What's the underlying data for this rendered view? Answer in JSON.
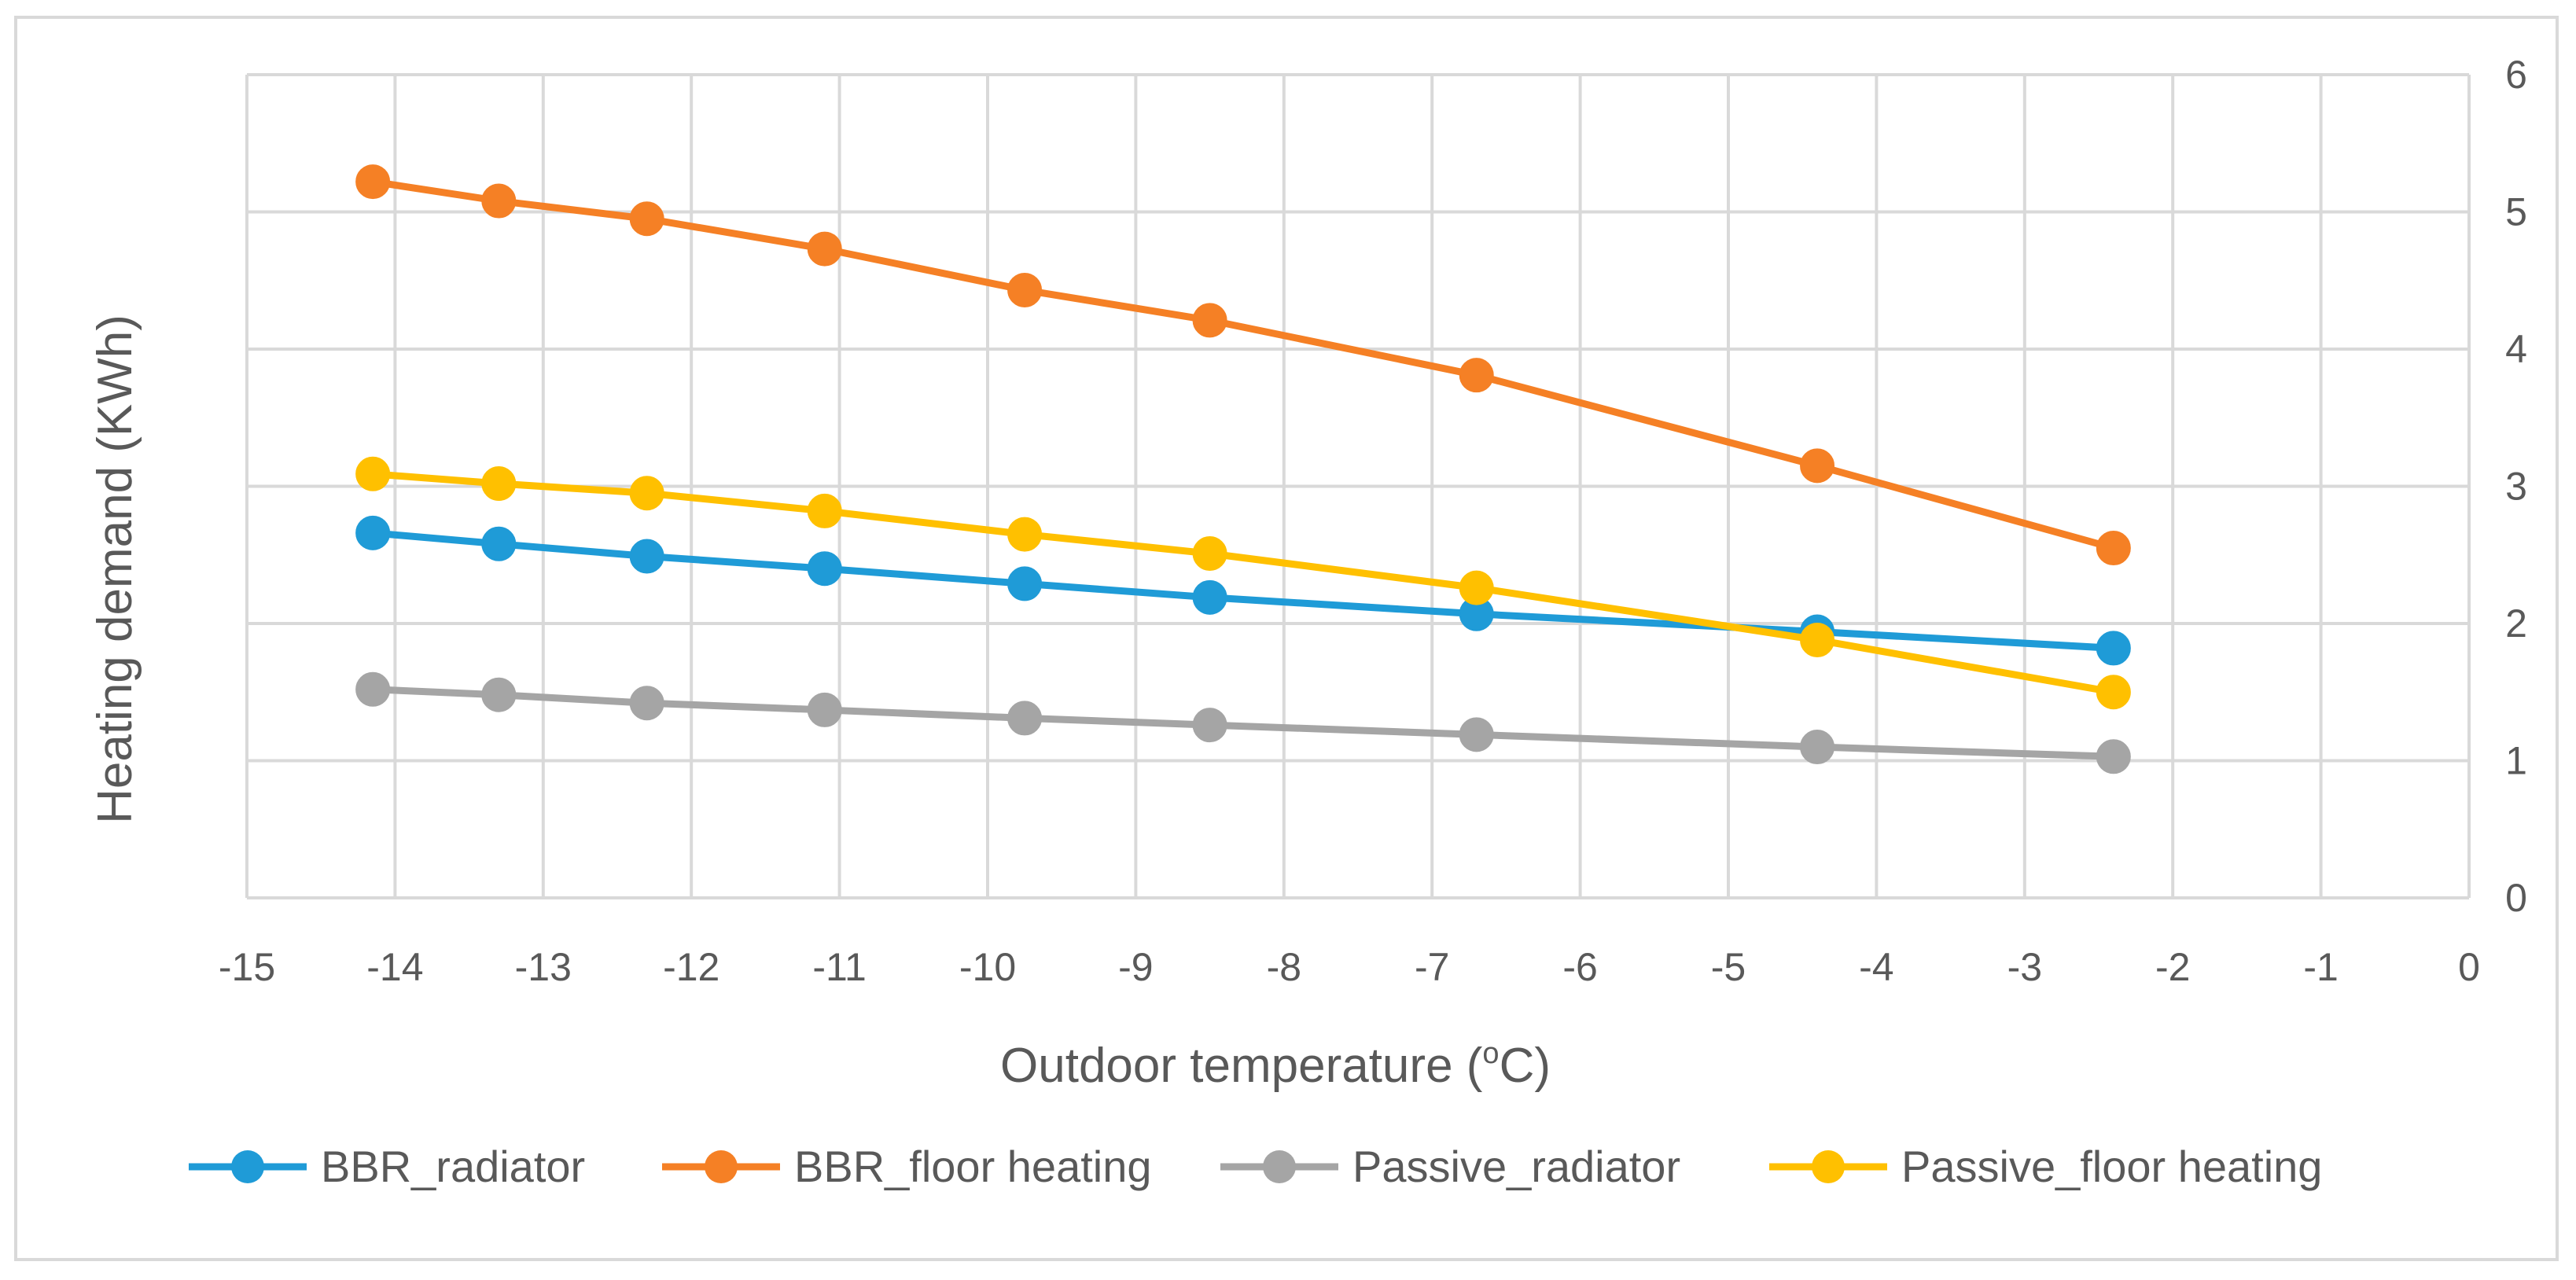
{
  "chart_data": {
    "type": "line",
    "title": "",
    "xlabel": "Outdoor temperature (",
    "xlabel_sup": "o",
    "xlabel_end": "C)",
    "ylabel": "Heating demand (KWh)",
    "xlim": [
      -15,
      0
    ],
    "ylim": [
      0,
      6
    ],
    "x_ticks": [
      "-15",
      "-14",
      "-13",
      "-12",
      "-11",
      "-10",
      "-9",
      "-8",
      "-7",
      "-6",
      "-5",
      "-4",
      "-3",
      "-2",
      "-1",
      "0"
    ],
    "y_ticks": [
      "0",
      "1",
      "2",
      "3",
      "4",
      "5",
      "6"
    ],
    "y_axis_side": "right",
    "grid": true,
    "legend_position": "bottom",
    "x": [
      -14.15,
      -13.3,
      -12.3,
      -11.1,
      -9.75,
      -8.5,
      -6.7,
      -4.4,
      -2.4
    ],
    "series": [
      {
        "name": "BBR_radiator",
        "color": "#1f9bd7",
        "values": [
          2.66,
          2.58,
          2.49,
          2.4,
          2.29,
          2.19,
          2.07,
          1.94,
          1.82
        ]
      },
      {
        "name": "BBR_floor heating",
        "color": "#f58025",
        "values": [
          5.22,
          5.08,
          4.95,
          4.73,
          4.43,
          4.21,
          3.81,
          3.15,
          2.55
        ]
      },
      {
        "name": "Passive_radiator",
        "color": "#a5a5a5",
        "values": [
          1.52,
          1.48,
          1.42,
          1.37,
          1.31,
          1.26,
          1.19,
          1.1,
          1.03
        ]
      },
      {
        "name": "Passive_floor heating",
        "color": "#ffc000",
        "values": [
          3.09,
          3.02,
          2.95,
          2.82,
          2.65,
          2.51,
          2.26,
          1.88,
          1.5
        ]
      }
    ]
  },
  "style": {
    "grid_color": "#d9d9d9",
    "text_color": "#595959"
  }
}
